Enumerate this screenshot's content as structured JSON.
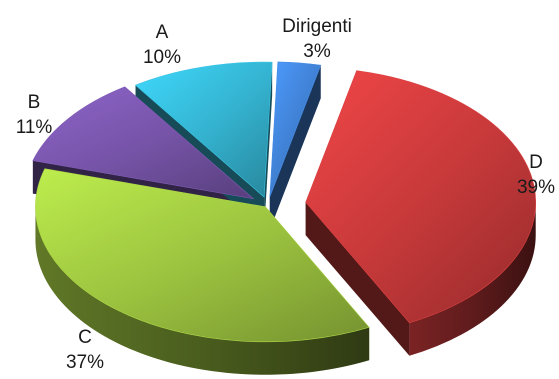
{
  "chart_data": {
    "type": "pie",
    "variant": "3d-exploded",
    "title": "",
    "slices": [
      {
        "label": "Dirigenti",
        "value": 3,
        "value_label": "3%",
        "color": "#3f7fd1"
      },
      {
        "label": "D",
        "value": 39,
        "value_label": "39%",
        "color": "#c6393a"
      },
      {
        "label": "C",
        "value": 37,
        "value_label": "37%",
        "color": "#9bc23f"
      },
      {
        "label": "B",
        "value": 11,
        "value_label": "11%",
        "color": "#7553a6"
      },
      {
        "label": "A",
        "value": 10,
        "value_label": "10%",
        "color": "#34b2cf"
      }
    ]
  }
}
